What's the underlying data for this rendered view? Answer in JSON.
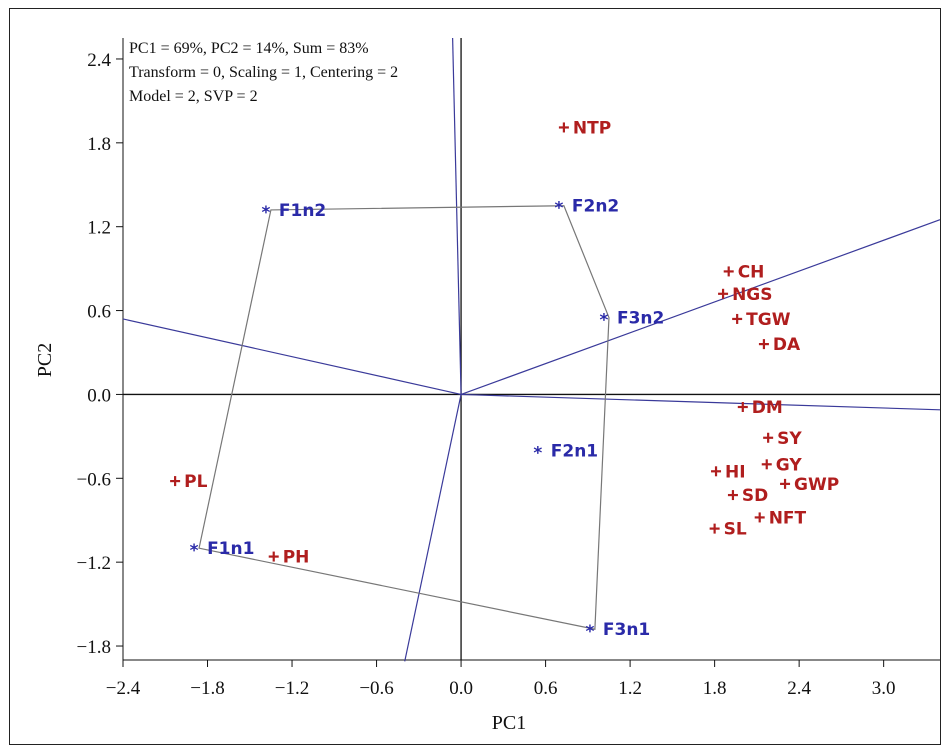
{
  "chart_data": {
    "type": "scatter",
    "xlabel": "PC1",
    "ylabel": "PC2",
    "xlim": [
      -2.4,
      3.4
    ],
    "ylim": [
      -1.9,
      2.55
    ],
    "xticks": [
      "−2.4",
      "−1.8",
      "−1.2",
      "−0.6",
      "0.0",
      "0.6",
      "1.2",
      "1.8",
      "2.4",
      "3.0"
    ],
    "xtick_values": [
      -2.4,
      -1.8,
      -1.2,
      -0.6,
      0.0,
      0.6,
      1.2,
      1.8,
      2.4,
      3.0
    ],
    "yticks": [
      "2.4",
      "1.8",
      "1.2",
      "0.6",
      "0.0",
      "−0.6",
      "−1.2",
      "−1.8"
    ],
    "ytick_values": [
      2.4,
      1.8,
      1.2,
      0.6,
      0.0,
      -0.6,
      -1.2,
      -1.8
    ],
    "info": [
      "PC1 = 69%, PC2 = 14%, Sum = 83%",
      "Transform = 0, Scaling = 1, Centering = 2",
      "Model = 2, SVP = 2"
    ],
    "traits": [
      {
        "label": "NTP",
        "x": 0.73,
        "y": 1.91
      },
      {
        "label": "CH",
        "x": 1.9,
        "y": 0.88
      },
      {
        "label": "NGS",
        "x": 1.86,
        "y": 0.72
      },
      {
        "label": "TGW",
        "x": 1.96,
        "y": 0.54
      },
      {
        "label": "DA",
        "x": 2.15,
        "y": 0.36
      },
      {
        "label": "DM",
        "x": 2.0,
        "y": -0.09
      },
      {
        "label": "SY",
        "x": 2.18,
        "y": -0.31
      },
      {
        "label": "GY",
        "x": 2.17,
        "y": -0.5
      },
      {
        "label": "HI",
        "x": 1.81,
        "y": -0.55
      },
      {
        "label": "GWP",
        "x": 2.3,
        "y": -0.64
      },
      {
        "label": "SD",
        "x": 1.93,
        "y": -0.72
      },
      {
        "label": "NFT",
        "x": 2.12,
        "y": -0.88
      },
      {
        "label": "SL",
        "x": 1.8,
        "y": -0.96
      },
      {
        "label": "PL",
        "x": -2.03,
        "y": -0.62
      },
      {
        "label": "PH",
        "x": -1.33,
        "y": -1.16
      }
    ],
    "genotypes": [
      {
        "label": "F1n2",
        "x": -1.35,
        "y": 1.32
      },
      {
        "label": "F2n2",
        "x": 0.73,
        "y": 1.35
      },
      {
        "label": "F3n2",
        "x": 1.05,
        "y": 0.55
      },
      {
        "label": "F2n1",
        "x": 0.58,
        "y": -0.4
      },
      {
        "label": "F1n1",
        "x": -1.86,
        "y": -1.1
      },
      {
        "label": "F3n1",
        "x": 0.95,
        "y": -1.68
      }
    ],
    "polygon_order": [
      "F1n2",
      "F2n2",
      "F3n2",
      "F3n1",
      "F1n1"
    ],
    "rays": [
      {
        "x": 3.4,
        "y": 1.25
      },
      {
        "x": 3.4,
        "y": -0.11
      },
      {
        "x": -2.4,
        "y": 0.54
      },
      {
        "x": -0.4,
        "y": -1.91
      },
      {
        "x": -0.06,
        "y": 2.55
      }
    ],
    "colors": {
      "trait": "#b01e1e",
      "genotype": "#2a2aa8",
      "ray": "#3a3a9a",
      "polygon": "#777777",
      "axis": "#111111"
    }
  }
}
